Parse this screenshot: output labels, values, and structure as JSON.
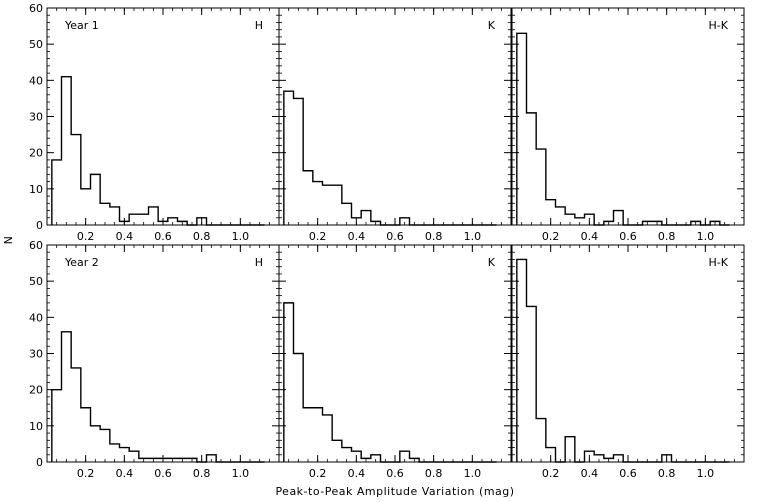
{
  "chart_data": {
    "type": "histogram-grid",
    "xlabel": "Peak-to-Peak Amplitude Variation (mag)",
    "ylabel": "N",
    "xlim": [
      0.0,
      1.2
    ],
    "ylim": [
      0,
      60
    ],
    "bin_start": 0.025,
    "bin_width": 0.05,
    "xticks": [
      0.2,
      0.4,
      0.6,
      0.8,
      1.0
    ],
    "xtick_labels": [
      "0.2",
      "0.4",
      "0.6",
      "0.8",
      "1.0"
    ],
    "yticks": [
      0,
      10,
      20,
      30,
      40,
      50,
      60
    ],
    "ytick_labels": [
      "0",
      "10",
      "20",
      "30",
      "40",
      "50",
      "60"
    ],
    "rows": [
      {
        "label": "Year 1",
        "panels": [
          {
            "band": "H",
            "counts": [
              18,
              41,
              25,
              10,
              14,
              6,
              5,
              1,
              3,
              3,
              5,
              1,
              2,
              1,
              0,
              2,
              0,
              0,
              0,
              0,
              0,
              0
            ]
          },
          {
            "band": "K",
            "counts": [
              37,
              35,
              15,
              12,
              11,
              11,
              6,
              2,
              4,
              1,
              0,
              0,
              2,
              0,
              0,
              0,
              0,
              0,
              0,
              0,
              0,
              0
            ]
          },
          {
            "band": "H-K",
            "counts": [
              53,
              31,
              21,
              7,
              5,
              3,
              2,
              3,
              0,
              1,
              4,
              0,
              0,
              1,
              1,
              0,
              0,
              0,
              1,
              0,
              1,
              0
            ]
          }
        ]
      },
      {
        "label": "Year 2",
        "panels": [
          {
            "band": "H",
            "counts": [
              20,
              36,
              26,
              15,
              10,
              9,
              5,
              4,
              3,
              1,
              1,
              1,
              1,
              1,
              1,
              0,
              2,
              0,
              0,
              0,
              0,
              0
            ]
          },
          {
            "band": "K",
            "counts": [
              44,
              30,
              15,
              15,
              13,
              6,
              4,
              3,
              1,
              2,
              0,
              0,
              3,
              1,
              0,
              0,
              0,
              0,
              0,
              0,
              0,
              0
            ]
          },
          {
            "band": "H-K",
            "counts": [
              56,
              43,
              12,
              4,
              0,
              7,
              0,
              3,
              2,
              1,
              2,
              0,
              0,
              0,
              0,
              2,
              0,
              0,
              0,
              0,
              0,
              0
            ]
          }
        ]
      }
    ]
  }
}
